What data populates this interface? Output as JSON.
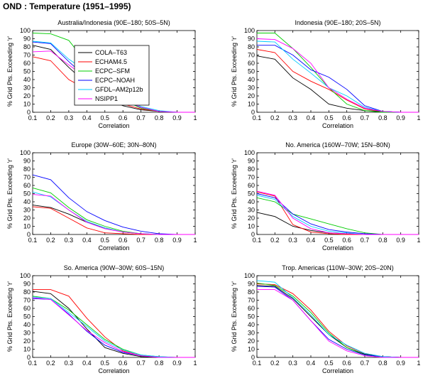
{
  "figure_title": "OND : Temperature (1951–1995)",
  "chart_data": [
    {
      "type": "line",
      "title": "Australia/Indonesia (90E–180; 50S–5N)",
      "xlabel": "Correlation",
      "ylabel": "% Grid Pts. Exceeding 'r'",
      "xlim": [
        0.1,
        1
      ],
      "ylim": [
        0,
        100
      ],
      "xticks": [
        "0.1",
        "0.2",
        "0.3",
        "0.4",
        "0.5",
        "0.6",
        "0.7",
        "0.8",
        "0.9",
        "1"
      ],
      "yticks": [
        "0",
        "10",
        "20",
        "30",
        "40",
        "50",
        "60",
        "70",
        "80",
        "90",
        "100"
      ],
      "x": [
        0.1,
        0.2,
        0.3,
        0.4,
        0.5,
        0.6,
        0.7,
        0.8,
        0.9,
        1.0
      ],
      "legend_location": "upper-left",
      "series": [
        {
          "name": "COLA–T63",
          "color": "#000000",
          "values": [
            82,
            77,
            55,
            35,
            18,
            8,
            3,
            1,
            0,
            0
          ]
        },
        {
          "name": "ECHAM4.5",
          "color": "#ff0000",
          "values": [
            68,
            63,
            40,
            28,
            20,
            10,
            4,
            1,
            0,
            0
          ]
        },
        {
          "name": "ECPC–SFM",
          "color": "#00cc00",
          "values": [
            97,
            96,
            88,
            60,
            35,
            15,
            5,
            1,
            0,
            0
          ]
        },
        {
          "name": "ECPC–NOAH",
          "color": "#0000ff",
          "values": [
            86,
            84,
            62,
            42,
            25,
            15,
            6,
            1,
            0,
            0
          ]
        },
        {
          "name": "GFDL–AM2p12b",
          "color": "#00ccff",
          "values": [
            87,
            85,
            65,
            50,
            33,
            18,
            7,
            2,
            0,
            0
          ]
        },
        {
          "name": "NSIPP1",
          "color": "#ff00ff",
          "values": [
            74,
            75,
            58,
            42,
            28,
            16,
            6,
            1,
            0,
            0
          ]
        }
      ]
    },
    {
      "type": "line",
      "title": "Indonesia (90E–180; 20S–5N)",
      "xlabel": "Correlation",
      "ylabel": "% Grid Pts. Exceeding 'r'",
      "xlim": [
        0.1,
        1
      ],
      "ylim": [
        0,
        100
      ],
      "xticks": [
        "0.1",
        "0.2",
        "0.3",
        "0.4",
        "0.5",
        "0.6",
        "0.7",
        "0.8",
        "0.9",
        "1"
      ],
      "yticks": [
        "0",
        "10",
        "20",
        "30",
        "40",
        "50",
        "60",
        "70",
        "80",
        "90",
        "100"
      ],
      "x": [
        0.1,
        0.2,
        0.3,
        0.4,
        0.5,
        0.6,
        0.7,
        0.8,
        0.9,
        1.0
      ],
      "series": [
        {
          "name": "COLA–T63",
          "color": "#000000",
          "values": [
            69,
            65,
            42,
            28,
            10,
            5,
            2,
            1,
            0,
            0
          ]
        },
        {
          "name": "ECHAM4.5",
          "color": "#ff0000",
          "values": [
            77,
            73,
            50,
            38,
            28,
            15,
            4,
            1,
            0,
            0
          ]
        },
        {
          "name": "ECPC–SFM",
          "color": "#00cc00",
          "values": [
            97,
            97,
            78,
            55,
            30,
            10,
            2,
            0,
            0,
            0
          ]
        },
        {
          "name": "ECPC–NOAH",
          "color": "#0000ff",
          "values": [
            82,
            82,
            70,
            52,
            43,
            28,
            8,
            1,
            0,
            0
          ]
        },
        {
          "name": "GFDL–AM2p12b",
          "color": "#00ccff",
          "values": [
            87,
            86,
            65,
            48,
            30,
            20,
            6,
            1,
            0,
            0
          ]
        },
        {
          "name": "NSIPP1",
          "color": "#ff00ff",
          "values": [
            90,
            89,
            78,
            60,
            30,
            16,
            5,
            1,
            0,
            0
          ]
        }
      ]
    },
    {
      "type": "line",
      "title": "Europe (30W–60E; 30N–80N)",
      "xlabel": "Correlation",
      "ylabel": "% Grid Pts. Exceeding 'r'",
      "xlim": [
        0.1,
        1
      ],
      "ylim": [
        0,
        100
      ],
      "xticks": [
        "0.1",
        "0.2",
        "0.3",
        "0.4",
        "0.5",
        "0.6",
        "0.7",
        "0.8",
        "0.9",
        "1"
      ],
      "yticks": [
        "0",
        "10",
        "20",
        "30",
        "40",
        "50",
        "60",
        "70",
        "80",
        "90",
        "100"
      ],
      "x": [
        0.1,
        0.2,
        0.3,
        0.4,
        0.5,
        0.6,
        0.7,
        0.8,
        0.9,
        1.0
      ],
      "series": [
        {
          "name": "COLA–T63",
          "color": "#000000",
          "values": [
            36,
            33,
            25,
            15,
            8,
            3,
            1,
            0,
            0,
            0
          ]
        },
        {
          "name": "ECHAM4.5",
          "color": "#ff0000",
          "values": [
            34,
            32,
            20,
            8,
            2,
            1,
            0,
            0,
            0,
            0
          ]
        },
        {
          "name": "ECPC–SFM",
          "color": "#00cc00",
          "values": [
            57,
            51,
            33,
            18,
            10,
            4,
            1,
            0,
            0,
            0
          ]
        },
        {
          "name": "ECPC–NOAH",
          "color": "#0000ff",
          "values": [
            73,
            67,
            45,
            28,
            17,
            9,
            4,
            1,
            0,
            0
          ]
        },
        {
          "name": "GFDL–AM2p12b",
          "color": "#00ccff",
          "values": [
            52,
            46,
            30,
            16,
            8,
            3,
            1,
            0,
            0,
            0
          ]
        },
        {
          "name": "NSIPP1",
          "color": "#ff00ff",
          "values": [
            49,
            47,
            30,
            15,
            7,
            3,
            1,
            0,
            0,
            0
          ]
        }
      ]
    },
    {
      "type": "line",
      "title": "No. America (160W–70W; 15N–80N)",
      "xlabel": "Correlation",
      "ylabel": "% Grid Pts. Exceeding 'r'",
      "xlim": [
        0.1,
        1
      ],
      "ylim": [
        0,
        100
      ],
      "xticks": [
        "0.1",
        "0.2",
        "0.3",
        "0.4",
        "0.5",
        "0.6",
        "0.7",
        "0.8",
        "0.9",
        "1"
      ],
      "yticks": [
        "0",
        "10",
        "20",
        "30",
        "40",
        "50",
        "60",
        "70",
        "80",
        "90",
        "100"
      ],
      "x": [
        0.1,
        0.2,
        0.3,
        0.4,
        0.5,
        0.6,
        0.7,
        0.8,
        0.9,
        1.0
      ],
      "series": [
        {
          "name": "COLA–T63",
          "color": "#000000",
          "values": [
            27,
            22,
            10,
            5,
            2,
            1,
            0,
            0,
            0,
            0
          ]
        },
        {
          "name": "ECHAM4.5",
          "color": "#ff0000",
          "values": [
            52,
            47,
            12,
            3,
            1,
            0,
            0,
            0,
            0,
            0
          ]
        },
        {
          "name": "ECPC–SFM",
          "color": "#00cc00",
          "values": [
            45,
            40,
            25,
            19,
            13,
            7,
            2,
            0,
            0,
            0
          ]
        },
        {
          "name": "ECPC–NOAH",
          "color": "#0000ff",
          "values": [
            50,
            45,
            25,
            13,
            6,
            3,
            1,
            0,
            0,
            0
          ]
        },
        {
          "name": "GFDL–AM2p12b",
          "color": "#00ccff",
          "values": [
            48,
            43,
            22,
            10,
            4,
            2,
            0,
            0,
            0,
            0
          ]
        },
        {
          "name": "NSIPP1",
          "color": "#ff00ff",
          "values": [
            53,
            48,
            20,
            7,
            2,
            1,
            0,
            0,
            0,
            0
          ]
        }
      ]
    },
    {
      "type": "line",
      "title": "So. America (90W–30W; 60S–15N)",
      "xlabel": "Correlation",
      "ylabel": "% Grid Pts. Exceeding 'r'",
      "xlim": [
        0.1,
        1
      ],
      "ylim": [
        0,
        100
      ],
      "xticks": [
        "0.1",
        "0.2",
        "0.3",
        "0.4",
        "0.5",
        "0.6",
        "0.7",
        "0.8",
        "0.9",
        "1"
      ],
      "yticks": [
        "0",
        "10",
        "20",
        "30",
        "40",
        "50",
        "60",
        "70",
        "80",
        "90",
        "100"
      ],
      "x": [
        0.1,
        0.2,
        0.3,
        0.4,
        0.5,
        0.6,
        0.7,
        0.8,
        0.9,
        1.0
      ],
      "series": [
        {
          "name": "COLA–T63",
          "color": "#000000",
          "values": [
            81,
            78,
            60,
            35,
            12,
            5,
            1,
            0,
            0,
            0
          ]
        },
        {
          "name": "ECHAM4.5",
          "color": "#ff0000",
          "values": [
            83,
            83,
            75,
            48,
            25,
            8,
            2,
            0,
            0,
            0
          ]
        },
        {
          "name": "ECPC–SFM",
          "color": "#00cc00",
          "values": [
            75,
            72,
            58,
            40,
            22,
            10,
            3,
            1,
            0,
            0
          ]
        },
        {
          "name": "ECPC–NOAH",
          "color": "#0000ff",
          "values": [
            72,
            71,
            53,
            32,
            15,
            6,
            2,
            0,
            0,
            0
          ]
        },
        {
          "name": "GFDL–AM2p12b",
          "color": "#00ccff",
          "values": [
            74,
            72,
            55,
            38,
            20,
            9,
            3,
            1,
            0,
            0
          ]
        },
        {
          "name": "NSIPP1",
          "color": "#ff00ff",
          "values": [
            73,
            71,
            52,
            33,
            18,
            7,
            2,
            0,
            0,
            0
          ]
        }
      ]
    },
    {
      "type": "line",
      "title": "Trop. Americas (110W–30W; 20S–20N)",
      "xlabel": "Correlation",
      "ylabel": "% Grid Pts. Exceeding 'r'",
      "xlim": [
        0.1,
        1
      ],
      "ylim": [
        0,
        100
      ],
      "xticks": [
        "0.1",
        "0.2",
        "0.3",
        "0.4",
        "0.5",
        "0.6",
        "0.7",
        "0.8",
        "0.9",
        "1"
      ],
      "yticks": [
        "0",
        "10",
        "20",
        "30",
        "40",
        "50",
        "60",
        "70",
        "80",
        "90",
        "100"
      ],
      "x": [
        0.1,
        0.2,
        0.3,
        0.4,
        0.5,
        0.6,
        0.7,
        0.8,
        0.9,
        1.0
      ],
      "series": [
        {
          "name": "COLA–T63",
          "color": "#000000",
          "values": [
            88,
            87,
            72,
            50,
            28,
            12,
            4,
            1,
            0,
            0
          ]
        },
        {
          "name": "ECHAM4.5",
          "color": "#ff0000",
          "values": [
            90,
            89,
            78,
            58,
            32,
            14,
            5,
            1,
            0,
            0
          ]
        },
        {
          "name": "ECPC–SFM",
          "color": "#00cc00",
          "values": [
            91,
            88,
            75,
            55,
            30,
            12,
            3,
            1,
            0,
            0
          ]
        },
        {
          "name": "ECPC–NOAH",
          "color": "#0000ff",
          "values": [
            87,
            86,
            70,
            45,
            22,
            10,
            3,
            1,
            0,
            0
          ]
        },
        {
          "name": "GFDL–AM2p12b",
          "color": "#00ccff",
          "values": [
            94,
            92,
            73,
            52,
            28,
            15,
            5,
            1,
            0,
            0
          ]
        },
        {
          "name": "NSIPP1",
          "color": "#ff00ff",
          "values": [
            83,
            83,
            70,
            45,
            20,
            8,
            2,
            0,
            0,
            0
          ]
        }
      ]
    }
  ]
}
